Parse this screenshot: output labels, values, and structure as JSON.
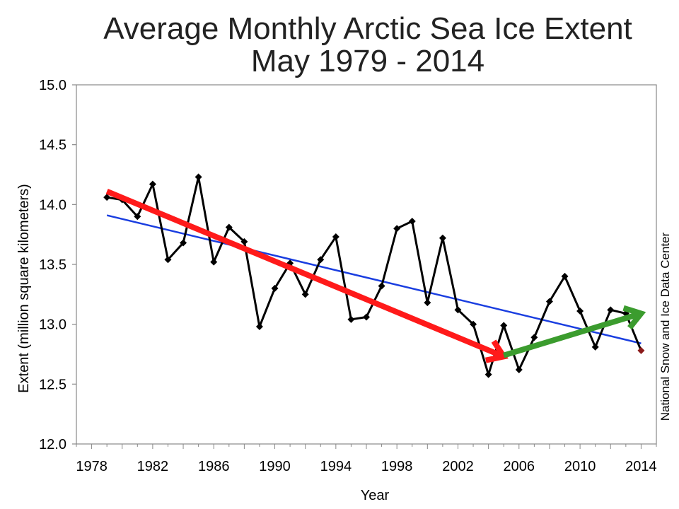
{
  "chart_data": {
    "type": "line",
    "title": "Average Monthly Arctic Sea Ice Extent",
    "subtitle": "May 1979 - 2014",
    "xlabel": "Year",
    "ylabel": "Extent (million square kilometers)",
    "credit": "National Snow and Ice Data Center",
    "xlim": [
      1977,
      2015
    ],
    "ylim": [
      12.0,
      15.0
    ],
    "x_ticks": [
      1978,
      1982,
      1986,
      1990,
      1994,
      1998,
      2002,
      2006,
      2010,
      2014
    ],
    "y_ticks": [
      "12.0",
      "12.5",
      "13.0",
      "13.5",
      "14.0",
      "14.5",
      "15.0"
    ],
    "grid": false,
    "legend": "none",
    "series": [
      {
        "color": "#000000",
        "marker": "diamond",
        "x": [
          1979,
          1980,
          1981,
          1982,
          1983,
          1984,
          1985,
          1986,
          1987,
          1988,
          1989,
          1990,
          1991,
          1992,
          1993,
          1994,
          1995,
          1996,
          1997,
          1998,
          1999,
          2000,
          2001,
          2002,
          2003,
          2004,
          2005,
          2006,
          2007,
          2008,
          2009,
          2010,
          2011,
          2012,
          2013,
          2014
        ],
        "y": [
          14.06,
          14.04,
          13.9,
          14.17,
          13.54,
          13.68,
          14.23,
          13.52,
          13.81,
          13.69,
          12.98,
          13.3,
          13.51,
          13.25,
          13.54,
          13.73,
          13.04,
          13.06,
          13.32,
          13.8,
          13.86,
          13.18,
          13.72,
          13.12,
          13.0,
          12.58,
          12.99,
          12.62,
          12.89,
          13.19,
          13.4,
          13.11,
          12.81,
          13.12,
          13.09,
          12.78
        ]
      }
    ],
    "last_point_color": "#8b1a1a",
    "trend_line": {
      "color": "#1a3ee0",
      "x": [
        1979,
        2014
      ],
      "y": [
        13.91,
        12.84
      ]
    },
    "annotations": [
      {
        "kind": "arrow",
        "color": "#ff1a1a",
        "x": [
          1979,
          2005
        ],
        "y": [
          14.11,
          12.73
        ]
      },
      {
        "kind": "arrow",
        "color": "#3b9c2e",
        "x": [
          2005,
          2014
        ],
        "y": [
          12.74,
          13.09
        ]
      }
    ]
  }
}
